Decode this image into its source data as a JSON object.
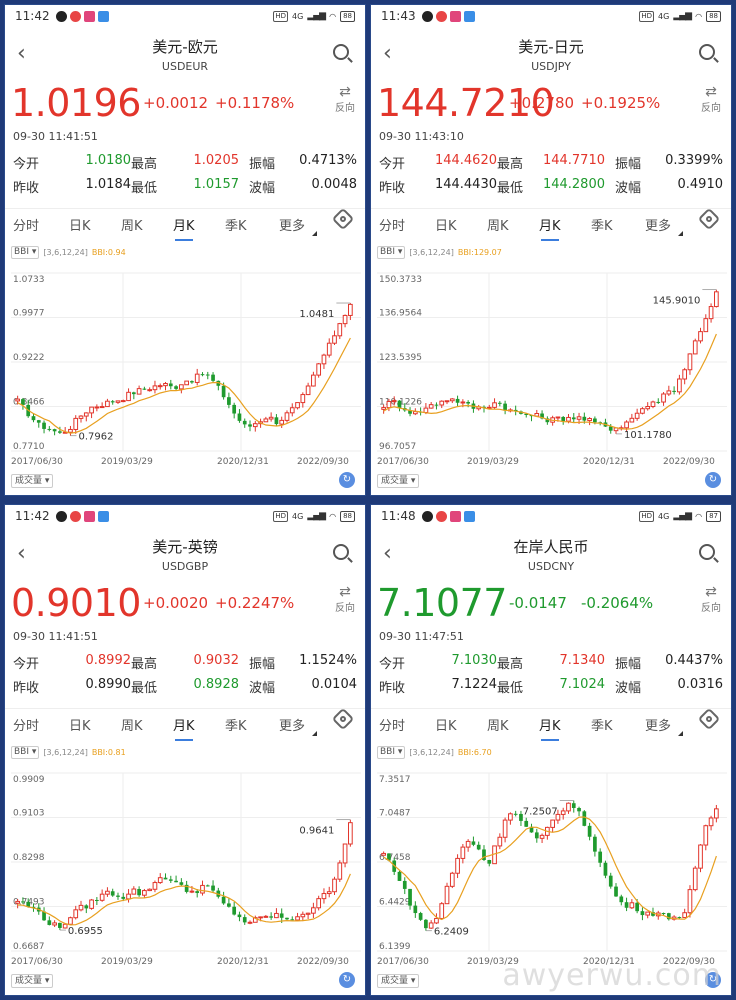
{
  "colors": {
    "up": "#e2352b",
    "down": "#1f9a2e",
    "ma": "#e8a020",
    "accent": "#3b7ddd"
  },
  "labels": {
    "open": "今开",
    "high": "最高",
    "amp": "振幅",
    "prev": "昨收",
    "low": "最低",
    "wave": "波幅",
    "reverse": "反向",
    "volume": "成交量"
  },
  "tabs": [
    "分时",
    "日K",
    "周K",
    "月K",
    "季K",
    "更多"
  ],
  "active_tab": "月K",
  "indicator": {
    "name": "BBI",
    "params": "[3,6,12,24]"
  },
  "watermark": "awyerwu.com",
  "panels": [
    {
      "status": {
        "time": "11:42",
        "network": "4G",
        "battery": "88"
      },
      "title": "美元-欧元",
      "code": "USDEUR",
      "price": "1.0196",
      "change": "+0.0012",
      "change_pct": "+0.1178%",
      "trend": "up",
      "timestamp": "09-30 11:41:51",
      "open": "1.0180",
      "open_color": "green",
      "high": "1.0205",
      "high_color": "red",
      "amplitude": "0.4713%",
      "prev_close": "1.0184",
      "prev_color": "dark",
      "low": "1.0157",
      "low_color": "green",
      "wave": "0.0048",
      "bbi_value": "BBI:0.94",
      "chart_data": {
        "type": "candlestick",
        "y_ticks": [
          "1.0733",
          "0.9977",
          "0.9222",
          "0.8466",
          "0.7710"
        ],
        "ylim": [
          0.771,
          1.0733
        ],
        "x_ticks": [
          "2017/06/30",
          "2019/03/29",
          "2020/12/31",
          "2022/09/30"
        ],
        "annotations": {
          "max": "1.0481",
          "min": "0.7962"
        },
        "close_path": [
          0.855,
          0.835,
          0.815,
          0.81,
          0.8,
          0.81,
          0.83,
          0.845,
          0.85,
          0.855,
          0.86,
          0.87,
          0.875,
          0.88,
          0.885,
          0.878,
          0.89,
          0.893,
          0.905,
          0.885,
          0.86,
          0.83,
          0.81,
          0.82,
          0.83,
          0.82,
          0.835,
          0.85,
          0.88,
          0.92,
          0.95,
          0.99,
          1.02
        ]
      }
    },
    {
      "status": {
        "time": "11:43",
        "network": "4G",
        "battery": "88"
      },
      "title": "美元-日元",
      "code": "USDJPY",
      "price": "144.7210",
      "change": "+0.2780",
      "change_pct": "+0.1925%",
      "trend": "up",
      "timestamp": "09-30 11:43:10",
      "open": "144.4620",
      "open_color": "red",
      "high": "144.7710",
      "high_color": "red",
      "amplitude": "0.3399%",
      "prev_close": "144.4430",
      "prev_color": "dark",
      "low": "144.2800",
      "low_color": "green",
      "wave": "0.4910",
      "bbi_value": "BBI:129.07",
      "chart_data": {
        "type": "candlestick",
        "y_ticks": [
          "150.3733",
          "136.9564",
          "123.5395",
          "110.1226",
          "96.7057"
        ],
        "ylim": [
          96.7057,
          150.3733
        ],
        "x_ticks": [
          "2017/06/30",
          "2019/03/29",
          "2020/12/31",
          "2022/09/30"
        ],
        "annotations": {
          "max": "145.9010",
          "min": "101.1780"
        },
        "close_path": [
          110.5,
          111.5,
          109.5,
          108.0,
          109.5,
          111.0,
          112.5,
          112.0,
          110.5,
          109.5,
          110.5,
          111.5,
          109.0,
          108.0,
          107.5,
          107.0,
          106.0,
          106.5,
          107.0,
          106.5,
          105.5,
          104.5,
          103.5,
          104.5,
          107.0,
          110.0,
          111.0,
          114.0,
          115.5,
          122.0,
          130.0,
          137.0,
          144.7
        ]
      }
    },
    {
      "status": {
        "time": "11:42",
        "network": "4G",
        "battery": "88"
      },
      "title": "美元-英镑",
      "code": "USDGBP",
      "price": "0.9010",
      "change": "+0.0020",
      "change_pct": "+0.2247%",
      "trend": "up",
      "timestamp": "09-30 11:41:51",
      "open": "0.8992",
      "open_color": "red",
      "high": "0.9032",
      "high_color": "red",
      "amplitude": "1.1524%",
      "prev_close": "0.8990",
      "prev_color": "dark",
      "low": "0.8928",
      "low_color": "green",
      "wave": "0.0104",
      "bbi_value": "BBI:0.81",
      "chart_data": {
        "type": "candlestick",
        "y_ticks": [
          "0.9909",
          "0.9103",
          "0.8298",
          "0.7493",
          "0.6687"
        ],
        "ylim": [
          0.6687,
          0.9909
        ],
        "x_ticks": [
          "2017/06/30",
          "2019/03/29",
          "2020/12/31",
          "2022/09/30"
        ],
        "annotations": {
          "max": "0.9641",
          "min": "0.6955"
        },
        "close_path": [
          0.76,
          0.75,
          0.74,
          0.72,
          0.71,
          0.73,
          0.745,
          0.755,
          0.77,
          0.775,
          0.765,
          0.78,
          0.77,
          0.79,
          0.805,
          0.795,
          0.78,
          0.775,
          0.79,
          0.77,
          0.75,
          0.735,
          0.72,
          0.725,
          0.73,
          0.735,
          0.72,
          0.735,
          0.74,
          0.76,
          0.78,
          0.83,
          0.901
        ]
      }
    },
    {
      "status": {
        "time": "11:48",
        "network": "4G",
        "battery": "87"
      },
      "title": "在岸人民币",
      "code": "USDCNY",
      "price": "7.1077",
      "change": "-0.0147",
      "change_pct": "-0.2064%",
      "trend": "down",
      "timestamp": "09-30 11:47:51",
      "open": "7.1030",
      "open_color": "green",
      "high": "7.1340",
      "high_color": "red",
      "amplitude": "0.4437%",
      "prev_close": "7.1224",
      "prev_color": "dark",
      "low": "7.1024",
      "low_color": "green",
      "wave": "0.0316",
      "bbi_value": "BBI:6.70",
      "chart_data": {
        "type": "candlestick",
        "y_ticks": [
          "7.3517",
          "7.0487",
          "6.7458",
          "6.4429",
          "6.1399"
        ],
        "ylim": [
          6.1399,
          7.3517
        ],
        "x_ticks": [
          "2017/06/30",
          "2019/03/29",
          "2020/12/31",
          "2022/09/30"
        ],
        "annotations": {
          "max": "7.2507",
          "min": "6.2409"
        },
        "close_path": [
          6.8,
          6.7,
          6.55,
          6.4,
          6.3,
          6.35,
          6.55,
          6.75,
          6.9,
          6.85,
          6.72,
          6.9,
          7.1,
          7.05,
          6.95,
          6.88,
          7.0,
          7.1,
          7.15,
          7.05,
          6.9,
          6.7,
          6.55,
          6.45,
          6.45,
          6.4,
          6.4,
          6.38,
          6.37,
          6.4,
          6.7,
          7.0,
          7.1077
        ]
      }
    }
  ]
}
